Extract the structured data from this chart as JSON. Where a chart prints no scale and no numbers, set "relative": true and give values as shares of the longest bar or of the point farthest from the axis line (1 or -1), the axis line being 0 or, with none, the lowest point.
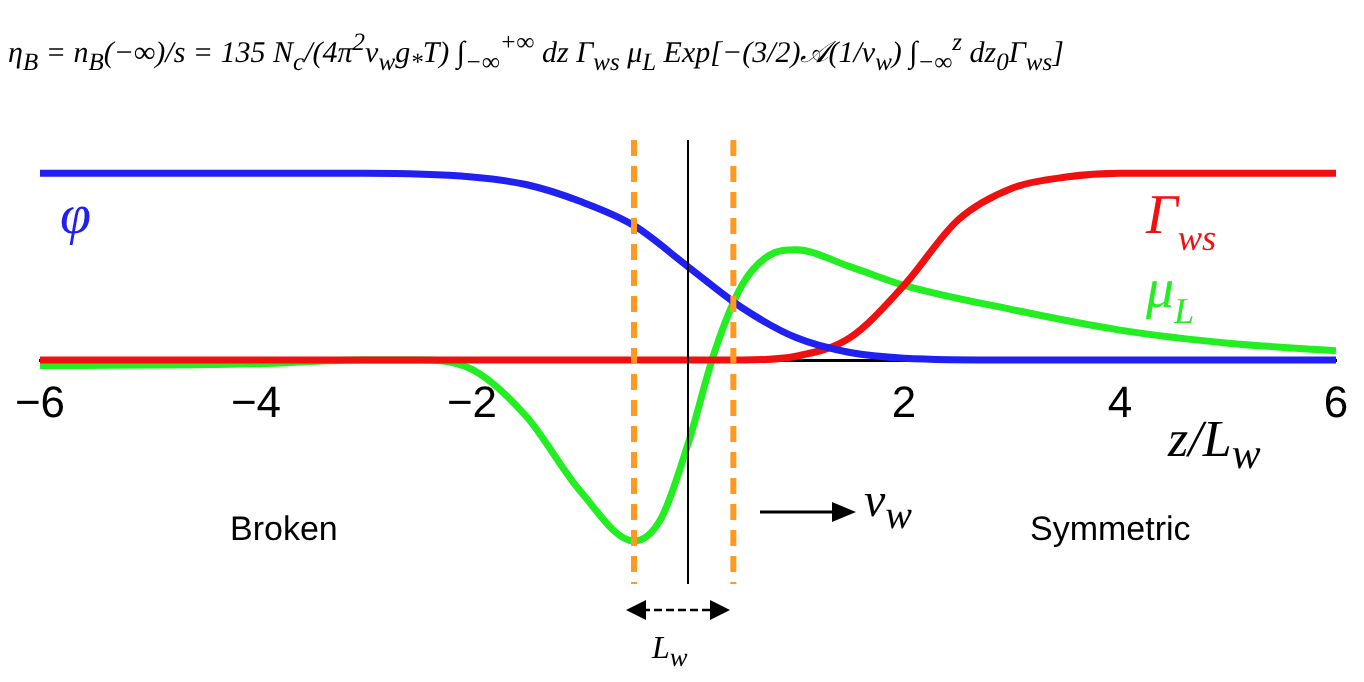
{
  "chart_data": {
    "type": "line",
    "title": "η$_{B}$ = n$_{B}$(−∞)/s = 135 N$_{c}$/(4π$^{2}$v$_{w}$g$_{*}$T) ∫$_{−∞}$$^{+∞}$ dz Γ$_{ws}$ μ$_{L}$ Exp[−(3/2)𝒜(1/v$_{w}$) ∫$_{−∞}$$^{z}$ dz$_{0}$Γ$_{ws}$]",
    "xlabel": "z/L$_{w}$",
    "relative": true,
    "legend": false,
    "marker": "none",
    "line_style": "solid",
    "xlim": [
      -6,
      6
    ],
    "xticks": [
      {
        "value": -6,
        "label": "−6"
      },
      {
        "value": -4,
        "label": "−4"
      },
      {
        "value": -2,
        "label": "−2"
      },
      2,
      4,
      6
    ],
    "series": [
      {
        "name": "φ",
        "color": "#2020f0",
        "x": [
          -6,
          -3,
          -2,
          -1.5,
          -1,
          -0.5,
          0,
          0.5,
          1,
          1.5,
          2,
          3,
          6
        ],
        "values": [
          1,
          1,
          0.98,
          0.94,
          0.85,
          0.72,
          0.5,
          0.28,
          0.12,
          0.04,
          0.01,
          0,
          0
        ]
      },
      {
        "name": "Γ$_{ws}$",
        "color": "#f01010",
        "x": [
          -6,
          0.5,
          1,
          1.5,
          2,
          2.5,
          3,
          3.5,
          4,
          6
        ],
        "values": [
          0,
          0,
          0.02,
          0.12,
          0.4,
          0.75,
          0.92,
          0.98,
          1,
          1
        ]
      },
      {
        "name": "μ$_{L}$",
        "color": "#22ee22",
        "x": [
          -6,
          -4,
          -3,
          -2.5,
          -2,
          -1.5,
          -1,
          -0.5,
          -0.25,
          0,
          0.25,
          0.5,
          0.75,
          1,
          1.5,
          2,
          3,
          4,
          5,
          6
        ],
        "values": [
          -0.03,
          -0.02,
          0,
          0,
          -0.05,
          -0.3,
          -0.7,
          -0.97,
          -0.85,
          -0.45,
          0.05,
          0.4,
          0.56,
          0.59,
          0.5,
          0.4,
          0.27,
          0.16,
          0.09,
          0.05
        ]
      }
    ],
    "ref_lines": [
      {
        "axis": "x",
        "value": -0.5,
        "color": "#ff9922",
        "line_style": "dashed"
      },
      {
        "axis": "x",
        "value": 0.42,
        "color": "#ff9922",
        "line_style": "dashed"
      },
      {
        "axis": "x",
        "value": 0,
        "color": "#000000",
        "line_style": "solid"
      }
    ],
    "annotations": [
      "Broken",
      "Symmetric",
      "v$_{w}$",
      "L$_{w}$"
    ]
  }
}
